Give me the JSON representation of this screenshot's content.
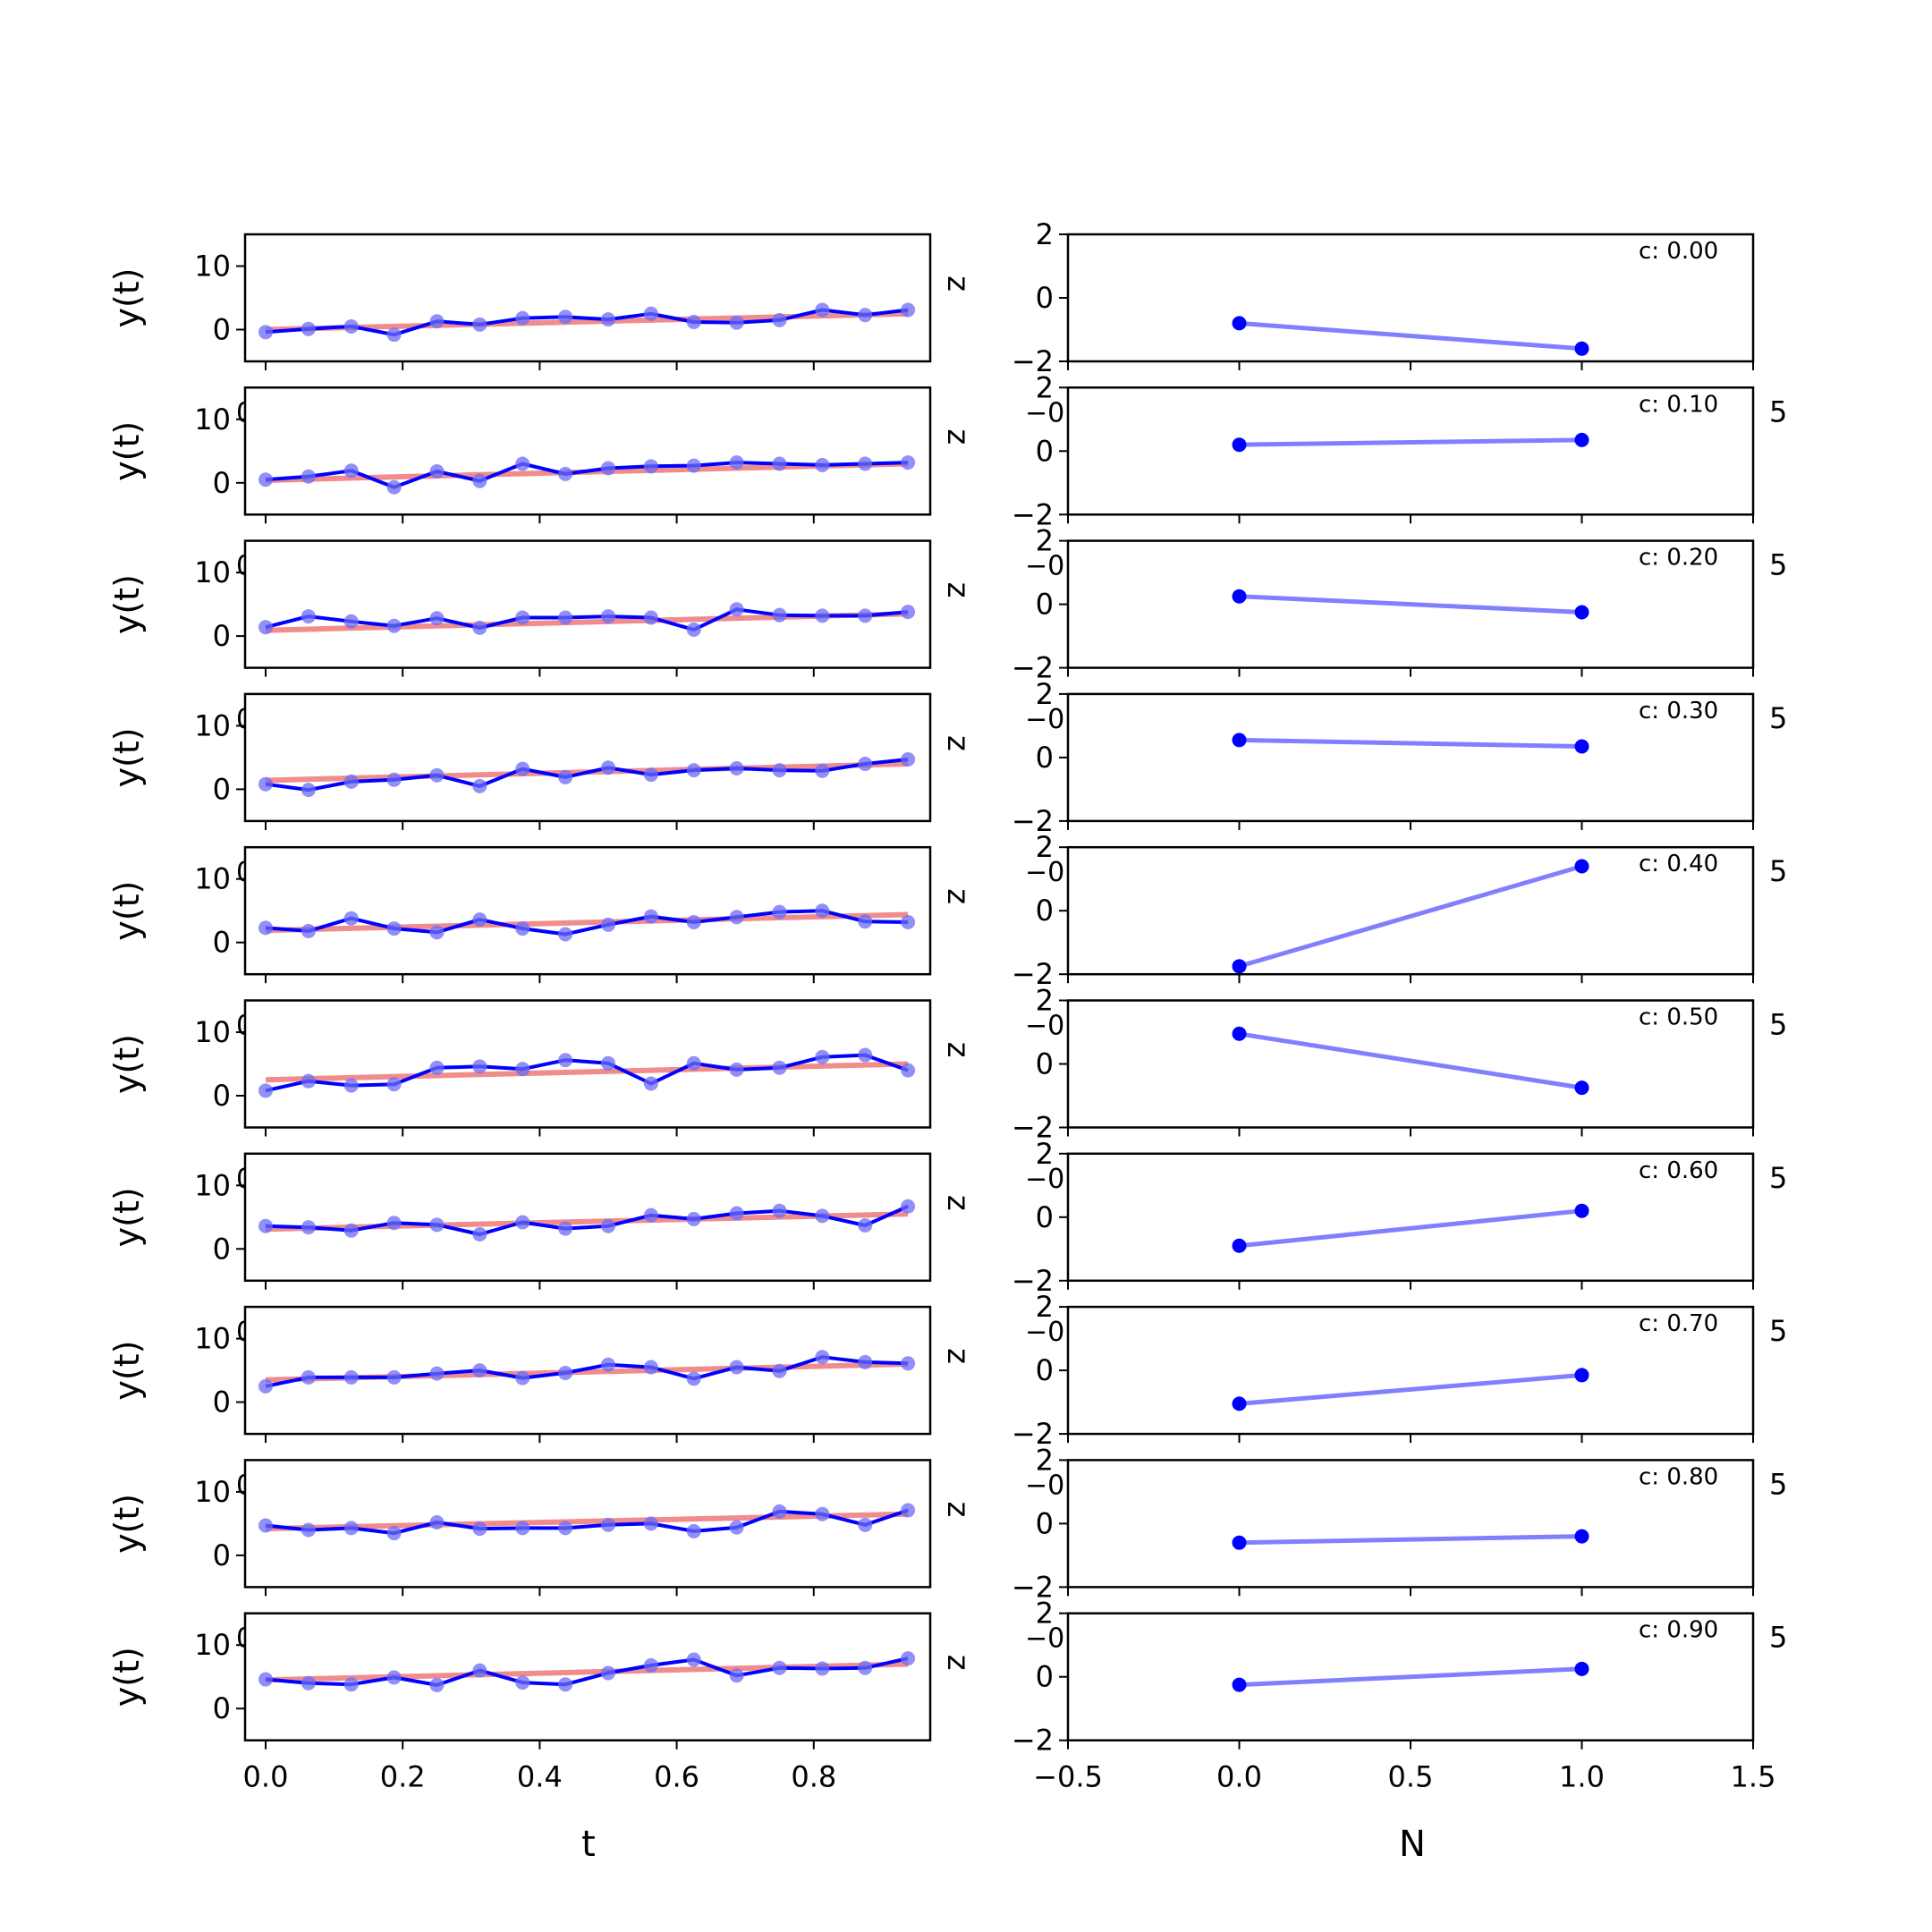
{
  "figure": {
    "left_xlabel": "t",
    "right_xlabel": "N",
    "left_ylabel": "y(t)",
    "clipped_ylabel_glyph": "z",
    "clipped_tick_glyph_left": "0",
    "clipped_tick_glyph_right_a": "−0",
    "clipped_tick_glyph_right_b": "5"
  },
  "colors": {
    "data_line": "#0000ff",
    "data_marker": "#6b6bf5",
    "fit_line": "#f08080",
    "right_line": "#8080ff",
    "right_marker": "#0000ff"
  },
  "chart_data": [
    {
      "type": "line",
      "panel": "left",
      "x": [
        0.0,
        0.0625,
        0.125,
        0.1875,
        0.25,
        0.3125,
        0.375,
        0.4375,
        0.5,
        0.5625,
        0.625,
        0.6875,
        0.75,
        0.8125,
        0.875,
        0.9375
      ],
      "xticks": [
        "0.0",
        "0.2",
        "0.4",
        "0.6",
        "0.8"
      ],
      "xtick_values": [
        0.0,
        0.2,
        0.4,
        0.6,
        0.8
      ],
      "xlim": [
        -0.03,
        0.97
      ],
      "ylim": [
        -5,
        15
      ],
      "yticks": [
        "0",
        "10"
      ],
      "ytick_values": [
        0,
        10
      ],
      "xlabel": "t",
      "ylabel": "y(t)",
      "rows": [
        {
          "y": [
            -0.4,
            0.1,
            0.5,
            -0.8,
            1.3,
            0.8,
            1.8,
            2.0,
            1.6,
            2.5,
            1.2,
            1.1,
            1.5,
            3.1,
            2.3,
            3.1
          ],
          "fit": [
            0.0,
            2.5
          ]
        },
        {
          "y": [
            0.5,
            1.0,
            1.9,
            -0.7,
            1.8,
            0.3,
            3.0,
            1.4,
            2.3,
            2.6,
            2.7,
            3.2,
            3.0,
            2.8,
            3.0,
            3.2
          ],
          "fit": [
            0.4,
            3.0
          ]
        },
        {
          "y": [
            1.4,
            3.1,
            2.3,
            1.6,
            2.8,
            1.3,
            2.9,
            2.9,
            3.1,
            2.9,
            1.0,
            4.2,
            3.3,
            3.2,
            3.2,
            3.8
          ],
          "fit": [
            0.9,
            3.5
          ]
        },
        {
          "y": [
            0.8,
            -0.1,
            1.2,
            1.5,
            2.2,
            0.5,
            3.2,
            1.9,
            3.4,
            2.3,
            3.0,
            3.3,
            3.0,
            2.9,
            4.0,
            4.7
          ],
          "fit": [
            1.4,
            4.0
          ]
        },
        {
          "y": [
            2.3,
            1.8,
            3.8,
            2.2,
            1.6,
            3.6,
            2.2,
            1.3,
            2.8,
            4.1,
            3.2,
            4.0,
            4.8,
            5.0,
            3.3,
            3.2
          ],
          "fit": [
            1.9,
            4.4
          ]
        },
        {
          "y": [
            0.8,
            2.3,
            1.6,
            1.8,
            4.4,
            4.6,
            4.2,
            5.6,
            5.1,
            1.9,
            5.1,
            4.1,
            4.4,
            6.1,
            6.4,
            4.0
          ],
          "fit": [
            2.5,
            5.0
          ]
        },
        {
          "y": [
            3.6,
            3.4,
            2.9,
            4.1,
            3.8,
            2.3,
            4.2,
            3.2,
            3.6,
            5.3,
            4.7,
            5.6,
            6.0,
            5.2,
            3.7,
            6.7
          ],
          "fit": [
            3.1,
            5.5
          ]
        },
        {
          "y": [
            2.5,
            3.9,
            3.9,
            3.9,
            4.5,
            5.0,
            3.8,
            4.6,
            5.9,
            5.5,
            3.7,
            5.5,
            4.9,
            7.1,
            6.3,
            6.1
          ],
          "fit": [
            3.5,
            6.0
          ]
        },
        {
          "y": [
            4.7,
            4.0,
            4.3,
            3.5,
            5.2,
            4.2,
            4.3,
            4.3,
            4.8,
            5.0,
            3.8,
            4.4,
            6.9,
            6.5,
            4.8,
            7.1
          ],
          "fit": [
            4.2,
            6.5
          ]
        },
        {
          "y": [
            4.6,
            4.0,
            3.8,
            4.9,
            3.7,
            6.0,
            4.1,
            3.8,
            5.6,
            6.8,
            7.7,
            5.2,
            6.4,
            6.3,
            6.4,
            7.9
          ],
          "fit": [
            4.5,
            7.0
          ]
        }
      ]
    },
    {
      "type": "line",
      "panel": "right",
      "x": [
        0,
        1
      ],
      "xlim": [
        -0.5,
        1.5
      ],
      "xticks": [
        "−0.5",
        "0.0",
        "0.5",
        "1.0",
        "1.5"
      ],
      "xtick_values": [
        -0.5,
        0.0,
        0.5,
        1.0,
        1.5
      ],
      "ylim": [
        -2,
        2
      ],
      "yticks": [
        "−2",
        "0",
        "2"
      ],
      "ytick_values": [
        -2,
        0,
        2
      ],
      "xlabel": "N",
      "rows": [
        {
          "label": "c: 0.00",
          "y": [
            -0.8,
            -1.6
          ]
        },
        {
          "label": "c: 0.10",
          "y": [
            0.2,
            0.35
          ]
        },
        {
          "label": "c: 0.20",
          "y": [
            0.25,
            -0.25
          ]
        },
        {
          "label": "c: 0.30",
          "y": [
            0.55,
            0.35
          ]
        },
        {
          "label": "c: 0.40",
          "y": [
            -1.75,
            1.4
          ]
        },
        {
          "label": "c: 0.50",
          "y": [
            0.95,
            -0.75
          ]
        },
        {
          "label": "c: 0.60",
          "y": [
            -0.9,
            0.2
          ]
        },
        {
          "label": "c: 0.70",
          "y": [
            -1.05,
            -0.15
          ]
        },
        {
          "label": "c: 0.80",
          "y": [
            -0.6,
            -0.4
          ]
        },
        {
          "label": "c: 0.90",
          "y": [
            -0.25,
            0.25
          ]
        }
      ]
    }
  ]
}
